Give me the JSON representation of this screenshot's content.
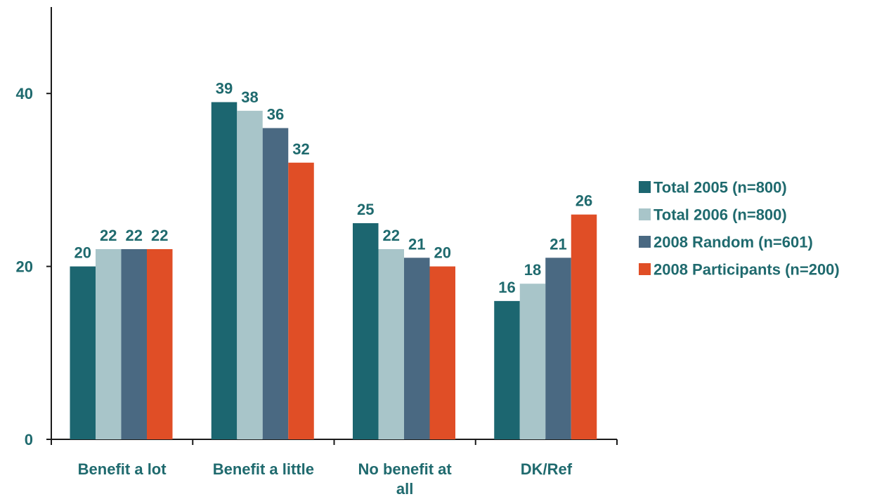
{
  "chart_data": {
    "type": "bar",
    "title": "",
    "xlabel": "",
    "ylabel": "",
    "ylim": [
      0,
      50
    ],
    "yticks": [
      0,
      20,
      40
    ],
    "grid": false,
    "legend_position": "right",
    "categories": [
      [
        "Benefit a lot"
      ],
      [
        "Benefit a little"
      ],
      [
        "No benefit at",
        "all"
      ],
      [
        "DK/Ref"
      ]
    ],
    "series": [
      {
        "name": "Total 2005 (n=800)",
        "color": "#1c6670",
        "values": [
          20,
          39,
          25,
          16
        ]
      },
      {
        "name": "Total 2006 (n=800)",
        "color": "#a8c5c9",
        "values": [
          22,
          38,
          22,
          18
        ]
      },
      {
        "name": "2008 Random (n=601)",
        "color": "#4a6982",
        "values": [
          22,
          36,
          21,
          21
        ]
      },
      {
        "name": "2008 Participants (n=200)",
        "color": "#e04e26",
        "values": [
          22,
          32,
          20,
          26
        ]
      }
    ]
  }
}
